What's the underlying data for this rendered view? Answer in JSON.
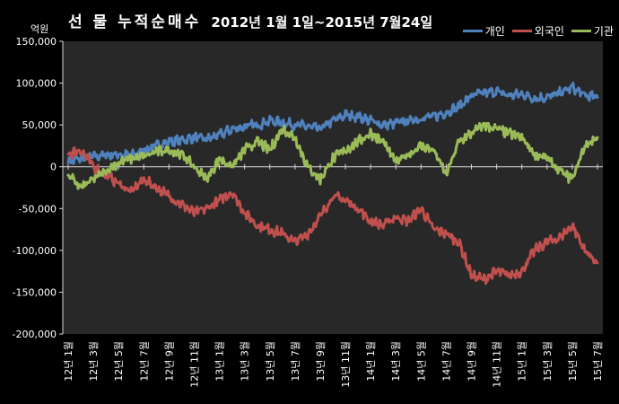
{
  "title": {
    "main": "선 물 누적순매수",
    "sub": "2012년 1월 1일~2015년 7월24일"
  },
  "unit_label": "억원",
  "legend": [
    {
      "name": "개인",
      "color": "#4f81bd"
    },
    {
      "name": "외국인",
      "color": "#c0504d"
    },
    {
      "name": "기관",
      "color": "#9bbb59"
    }
  ],
  "chart_data": {
    "type": "line",
    "title": "선 물 누적순매수 2012년 1월 1일~2015년 7월24일",
    "ylabel": "억원",
    "ylim": [
      -200000,
      150000
    ],
    "yticks": [
      150000,
      100000,
      50000,
      0,
      -50000,
      -100000,
      -150000,
      -200000
    ],
    "ytick_labels": [
      "150,000",
      "100,000",
      "50,000",
      "0",
      "-50,000",
      "-100,000",
      "-150,000",
      "-200,000"
    ],
    "xtick_labels": [
      "12년 1월",
      "12년 3월",
      "12년 5월",
      "12년 7월",
      "12년 9월",
      "12년 11월",
      "13년 1월",
      "13년 3월",
      "13년 5월",
      "13년 7월",
      "13년 9월",
      "13년 11월",
      "14년 1월",
      "14년 3월",
      "14년 5월",
      "14년 7월",
      "14년 9월",
      "14년 11월",
      "15년 1월",
      "15년 3월",
      "15년 5월",
      "15년 7월"
    ],
    "x_dates": [
      "2012-01",
      "2012-02",
      "2012-03",
      "2012-04",
      "2012-05",
      "2012-06",
      "2012-07",
      "2012-08",
      "2012-09",
      "2012-10",
      "2012-11",
      "2012-12",
      "2013-01",
      "2013-02",
      "2013-03",
      "2013-04",
      "2013-05",
      "2013-06",
      "2013-07",
      "2013-08",
      "2013-09",
      "2013-10",
      "2013-11",
      "2013-12",
      "2014-01",
      "2014-02",
      "2014-03",
      "2014-04",
      "2014-05",
      "2014-06",
      "2014-07",
      "2014-08",
      "2014-09",
      "2014-10",
      "2014-11",
      "2014-12",
      "2015-01",
      "2015-02",
      "2015-03",
      "2015-04",
      "2015-05",
      "2015-06",
      "2015-07"
    ],
    "series": [
      {
        "name": "개인",
        "color": "#4f81bd",
        "values": [
          5000,
          10000,
          12000,
          14000,
          15000,
          13000,
          20000,
          25000,
          30000,
          32000,
          35000,
          33000,
          38000,
          45000,
          48000,
          50000,
          55000,
          53000,
          50000,
          48000,
          45000,
          55000,
          62000,
          60000,
          55000,
          50000,
          52000,
          55000,
          58000,
          60000,
          65000,
          72000,
          85000,
          88000,
          90000,
          85000,
          87000,
          82000,
          83000,
          88000,
          95000,
          85000,
          83000
        ]
      },
      {
        "name": "외국인",
        "color": "#c0504d",
        "values": [
          15000,
          20000,
          0,
          -10000,
          -20000,
          -30000,
          -15000,
          -25000,
          -35000,
          -45000,
          -55000,
          -50000,
          -40000,
          -30000,
          -55000,
          -70000,
          -75000,
          -80000,
          -90000,
          -80000,
          -60000,
          -35000,
          -40000,
          -50000,
          -65000,
          -70000,
          -60000,
          -65000,
          -50000,
          -75000,
          -80000,
          -90000,
          -130000,
          -135000,
          -125000,
          -130000,
          -125000,
          -100000,
          -90000,
          -85000,
          -70000,
          -100000,
          -115000
        ]
      },
      {
        "name": "기관",
        "color": "#9bbb59",
        "values": [
          -10000,
          -25000,
          -15000,
          -5000,
          5000,
          10000,
          12000,
          18000,
          20000,
          15000,
          0,
          -15000,
          10000,
          0,
          20000,
          30000,
          20000,
          45000,
          35000,
          0,
          -15000,
          10000,
          20000,
          30000,
          40000,
          30000,
          5000,
          15000,
          25000,
          20000,
          -10000,
          30000,
          40000,
          50000,
          45000,
          40000,
          35000,
          15000,
          10000,
          -5000,
          -15000,
          25000,
          35000
        ]
      }
    ],
    "grid": false,
    "legend_position": "top-right"
  }
}
